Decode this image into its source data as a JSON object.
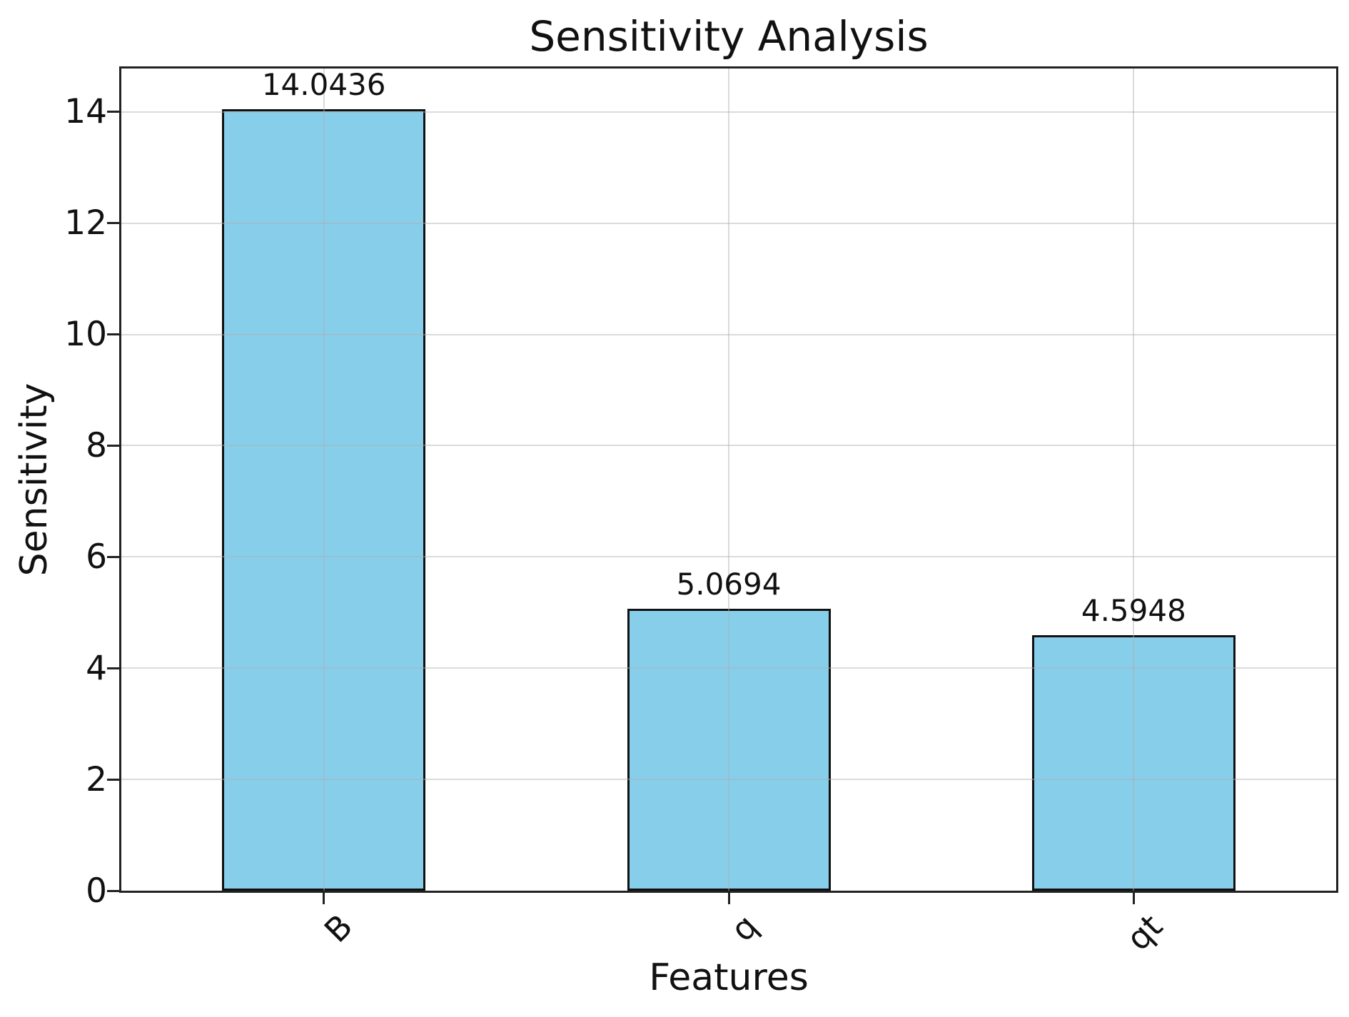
{
  "chart_data": {
    "type": "bar",
    "title": "Sensitivity Analysis",
    "xlabel": "Features",
    "ylabel": "Sensitivity",
    "categories": [
      "B",
      "q",
      "qt"
    ],
    "values": [
      14.0436,
      5.0694,
      4.5948
    ],
    "value_labels": [
      "14.0436",
      "5.0694",
      "4.5948"
    ],
    "yticks": [
      0,
      2,
      4,
      6,
      8,
      10,
      12,
      14
    ],
    "ytick_labels": [
      "0",
      "2",
      "4",
      "6",
      "8",
      "10",
      "12",
      "14"
    ],
    "ylim": [
      0,
      14.78
    ],
    "grid": "on",
    "legend": "none",
    "x_tick_rotation_deg": 45,
    "colors": {
      "bar_fill": "#87CEEB",
      "bar_edge": "#111111",
      "spine": "#222222",
      "gridline": "#b0b0b0",
      "text": "#111111",
      "background": "#ffffff"
    }
  }
}
